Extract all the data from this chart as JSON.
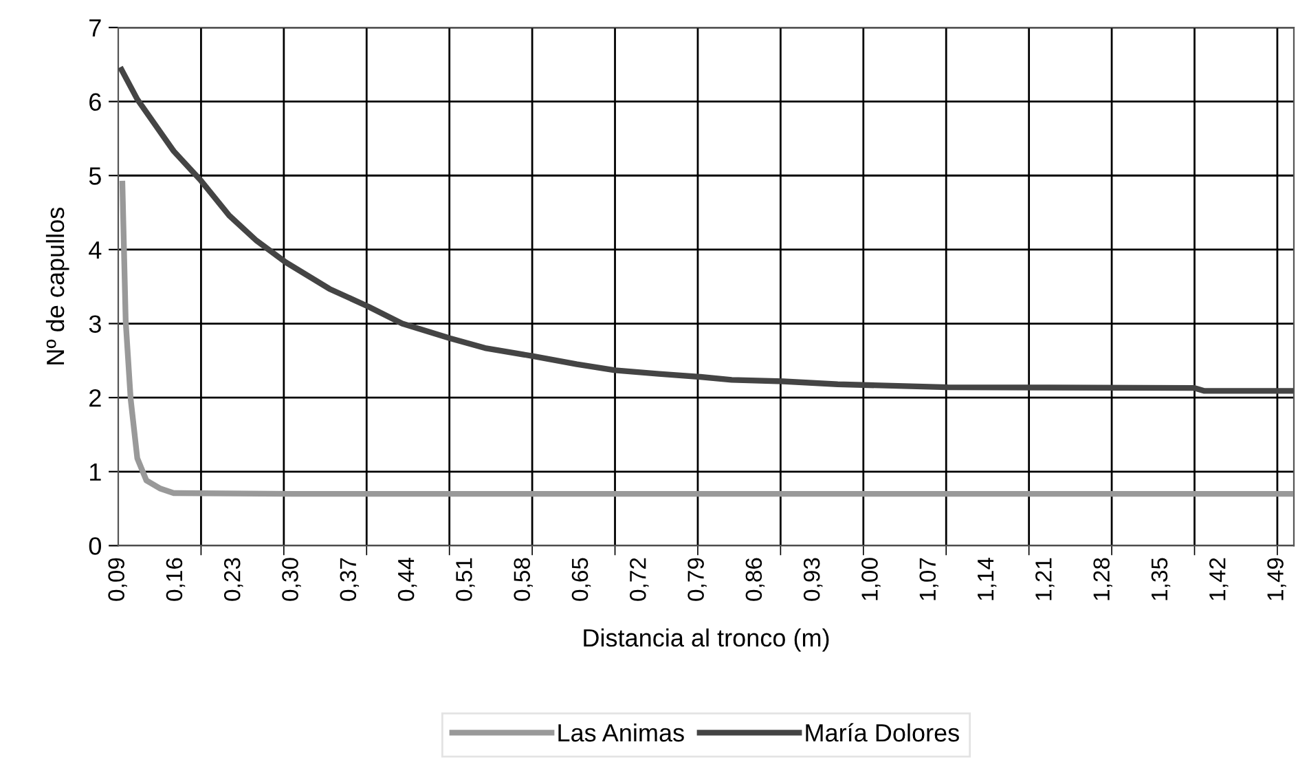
{
  "chart_data": {
    "type": "line",
    "xlabel": "Distancia al tronco (m)",
    "ylabel": "Nº de capullos",
    "xlim": [
      0.09,
      1.51
    ],
    "ylim": [
      0,
      7
    ],
    "yticks": [
      0,
      1,
      2,
      3,
      4,
      5,
      6,
      7
    ],
    "xticks": [
      {
        "value": 0.09,
        "label": "0,09"
      },
      {
        "value": 0.16,
        "label": "0,16"
      },
      {
        "value": 0.23,
        "label": "0,23"
      },
      {
        "value": 0.3,
        "label": "0,30"
      },
      {
        "value": 0.37,
        "label": "0,37"
      },
      {
        "value": 0.44,
        "label": "0,44"
      },
      {
        "value": 0.51,
        "label": "0,51"
      },
      {
        "value": 0.58,
        "label": "0,58"
      },
      {
        "value": 0.65,
        "label": "0,65"
      },
      {
        "value": 0.72,
        "label": "0,72"
      },
      {
        "value": 0.79,
        "label": "0,79"
      },
      {
        "value": 0.86,
        "label": "0,86"
      },
      {
        "value": 0.93,
        "label": "0,93"
      },
      {
        "value": 1.0,
        "label": "1,00"
      },
      {
        "value": 1.07,
        "label": "1,07"
      },
      {
        "value": 1.14,
        "label": "1,14"
      },
      {
        "value": 1.21,
        "label": "1,21"
      },
      {
        "value": 1.28,
        "label": "1,28"
      },
      {
        "value": 1.35,
        "label": "1,35"
      },
      {
        "value": 1.42,
        "label": "1,42"
      },
      {
        "value": 1.49,
        "label": "1,49"
      },
      {
        "value": 0.19,
        "label": null
      },
      {
        "value": 0.29,
        "label": null
      },
      {
        "value": 0.39,
        "label": null
      },
      {
        "value": 0.49,
        "label": null
      },
      {
        "value": 0.59,
        "label": null
      },
      {
        "value": 0.69,
        "label": null
      },
      {
        "value": 0.79,
        "label": null
      },
      {
        "value": 0.89,
        "label": null
      },
      {
        "value": 0.99,
        "label": null
      },
      {
        "value": 1.09,
        "label": null
      },
      {
        "value": 1.19,
        "label": null
      },
      {
        "value": 1.29,
        "label": null
      },
      {
        "value": 1.39,
        "label": null
      },
      {
        "value": 1.49,
        "label": null
      }
    ],
    "grid": true,
    "legend": "bottom",
    "marker": "none",
    "line_style": "solid",
    "series": [
      {
        "name": "Las Animas",
        "color": "#999999",
        "x": [
          0.095,
          0.099,
          0.105,
          0.113,
          0.124,
          0.141,
          0.157,
          0.3,
          0.6,
          0.9,
          1.2,
          1.506
        ],
        "values": [
          4.89,
          3.03,
          1.98,
          1.18,
          0.88,
          0.77,
          0.71,
          0.7,
          0.7,
          0.7,
          0.7,
          0.7
        ]
      },
      {
        "name": "María Dolores",
        "color": "#444444",
        "x": [
          0.094,
          0.113,
          0.157,
          0.19,
          0.224,
          0.257,
          0.292,
          0.345,
          0.392,
          0.433,
          0.491,
          0.533,
          0.591,
          0.644,
          0.69,
          0.743,
          0.793,
          0.831,
          0.893,
          0.959,
          1.092,
          1.39,
          1.402,
          1.506
        ],
        "values": [
          6.43,
          6.03,
          5.33,
          4.93,
          4.46,
          4.12,
          3.83,
          3.47,
          3.23,
          3.0,
          2.8,
          2.67,
          2.56,
          2.45,
          2.37,
          2.32,
          2.28,
          2.24,
          2.22,
          2.18,
          2.14,
          2.13,
          2.09,
          2.09
        ]
      }
    ]
  }
}
